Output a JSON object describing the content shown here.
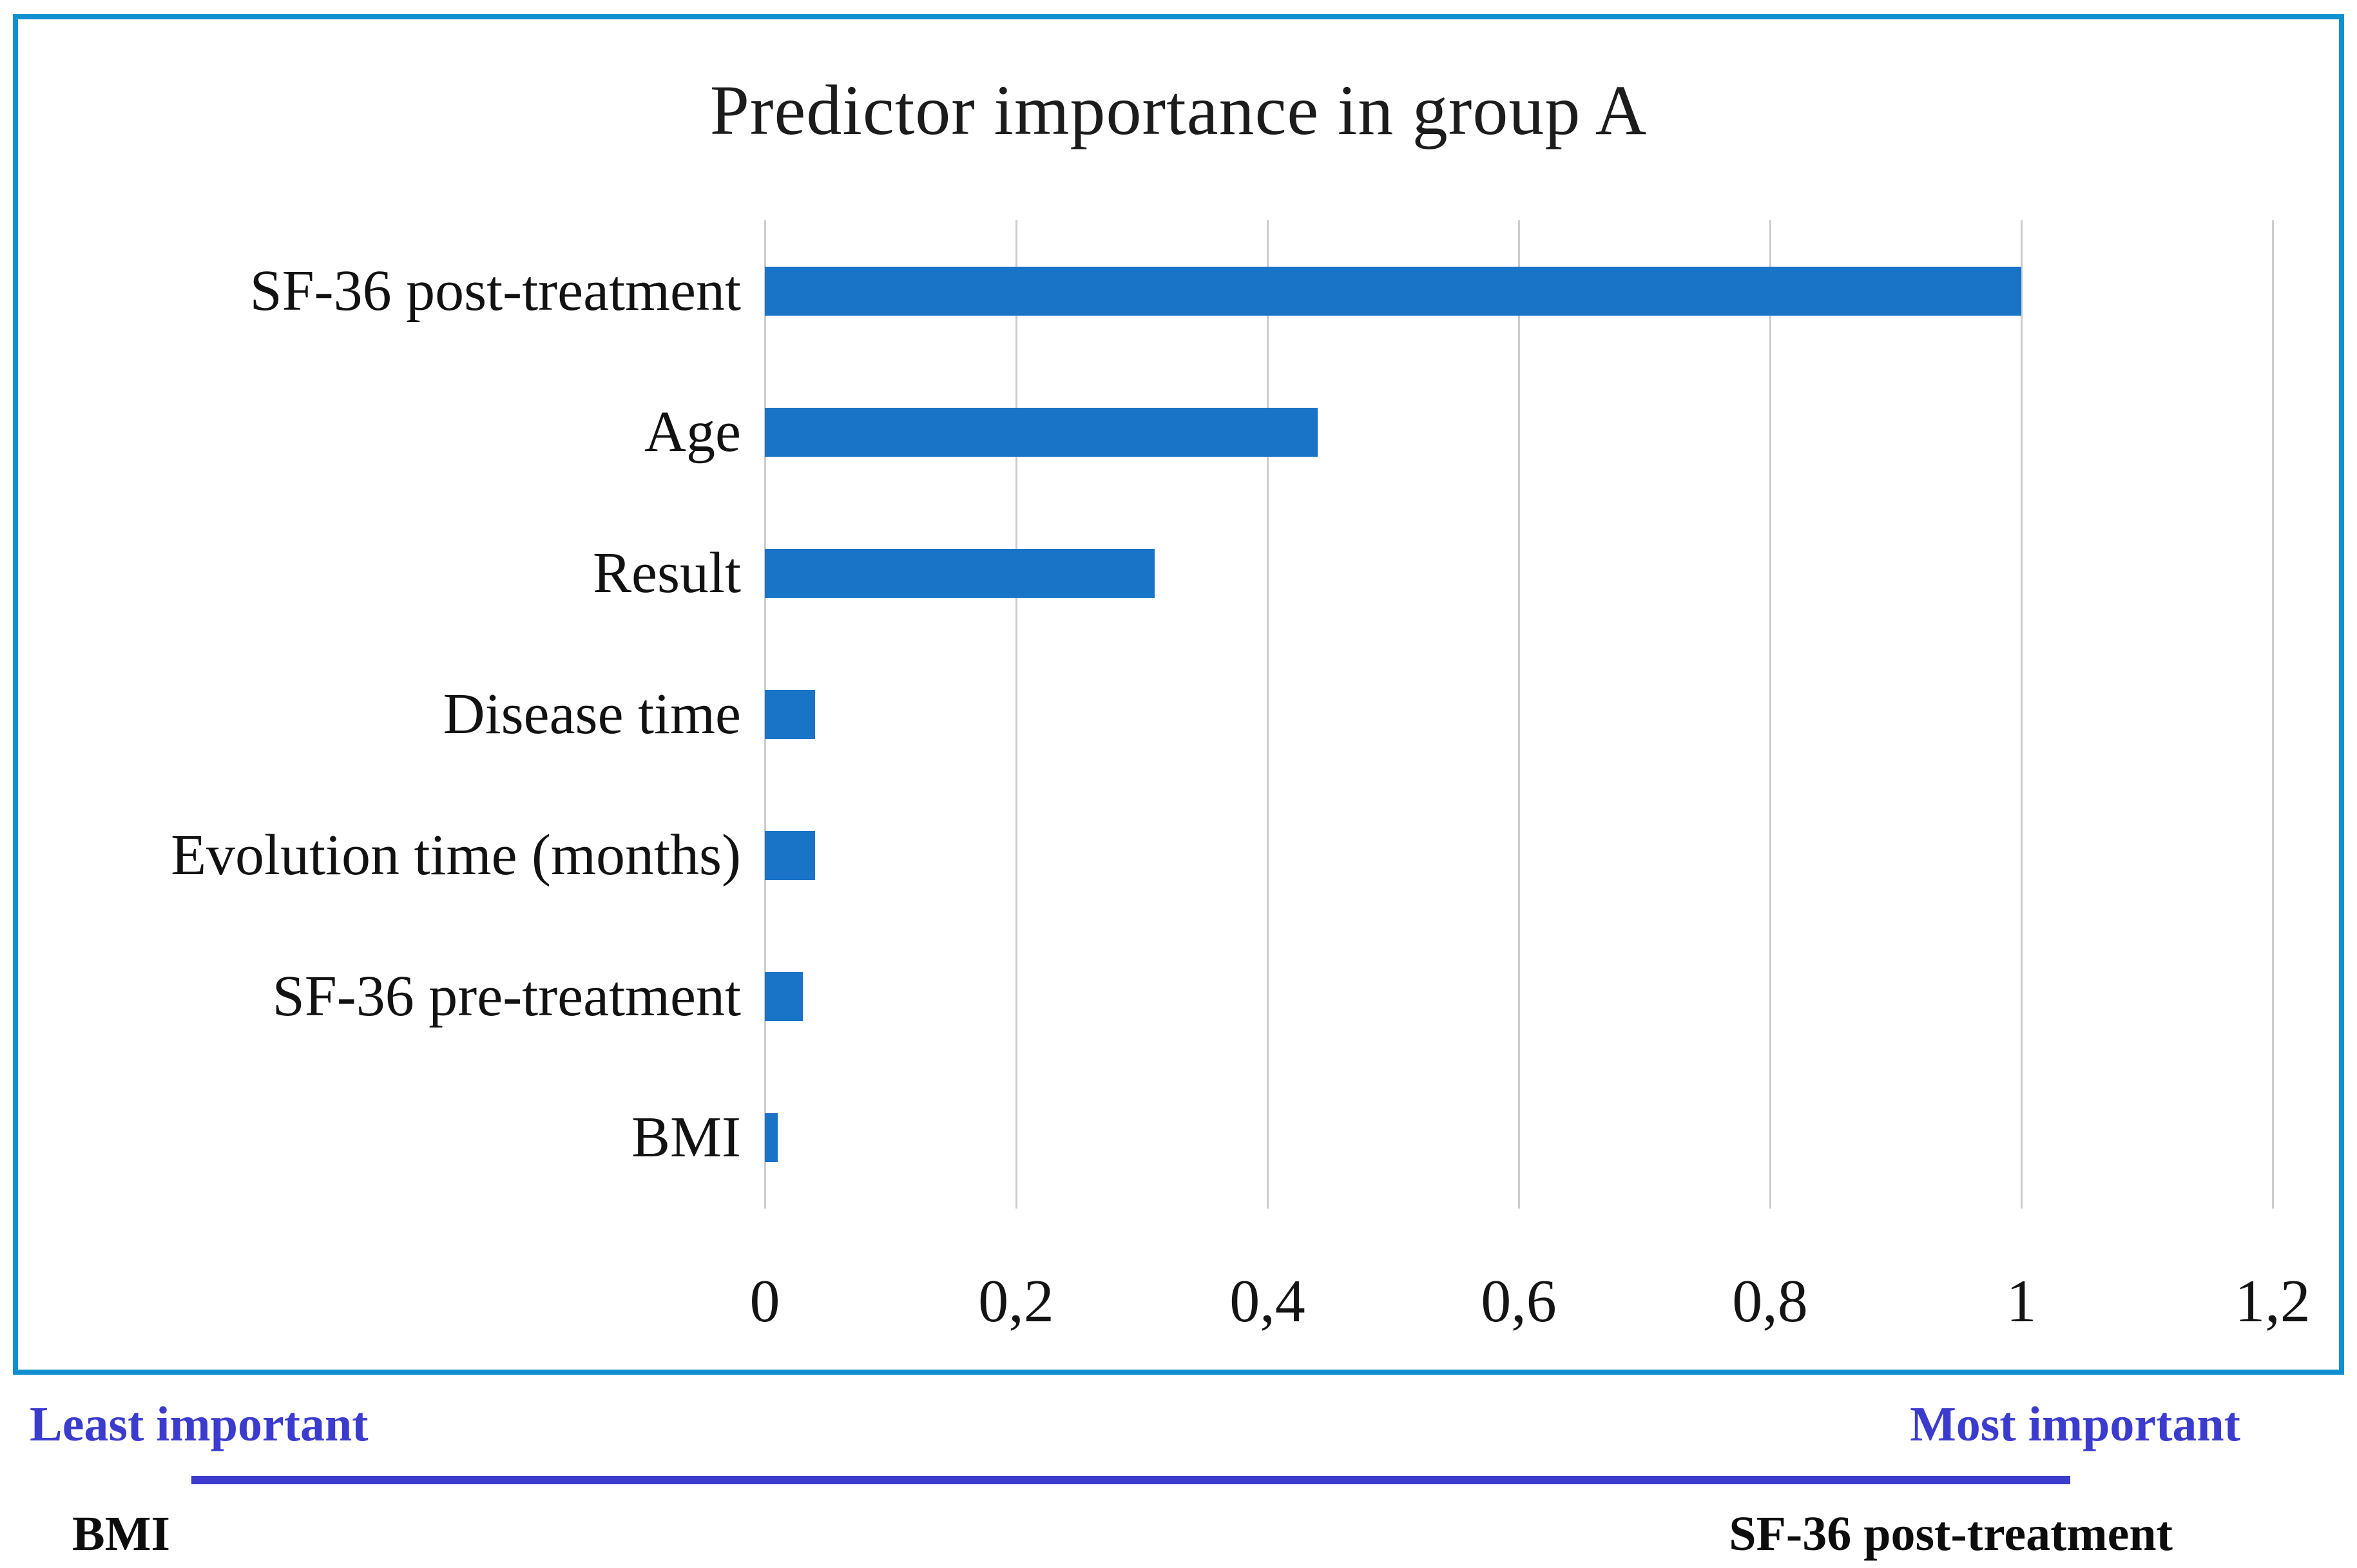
{
  "figure": {
    "title": "Predictor importance in group A"
  },
  "chart_data": {
    "type": "bar",
    "orientation": "horizontal",
    "title": "Predictor importance in group A",
    "categories": [
      "SF-36 post-treatment",
      "Age",
      "Result",
      "Disease time",
      "Evolution time (months)",
      "SF-36 pre-treatment",
      "BMI"
    ],
    "values": [
      1.0,
      0.44,
      0.31,
      0.04,
      0.04,
      0.03,
      0.01
    ],
    "xlabel": "",
    "ylabel": "",
    "xlim": [
      0,
      1.2
    ],
    "x_ticks": [
      0,
      0.2,
      0.4,
      0.6,
      0.8,
      1,
      1.2
    ],
    "x_tick_labels": [
      "0",
      "0,2",
      "0,4",
      "0,6",
      "0,8",
      "1",
      "1,2"
    ],
    "grid": "vertical",
    "legend": "none",
    "bar_color": "#1973C6"
  },
  "colors": {
    "bar": "#1973C6",
    "frame_border": "#1090D0",
    "gridline": "#cccccc",
    "annotation_blue": "#3B3BCE",
    "text": "#141414"
  },
  "footer": {
    "least_label": "Least important",
    "most_label": "Most important",
    "left_item": "BMI",
    "right_item": "SF-36 post-treatment"
  }
}
